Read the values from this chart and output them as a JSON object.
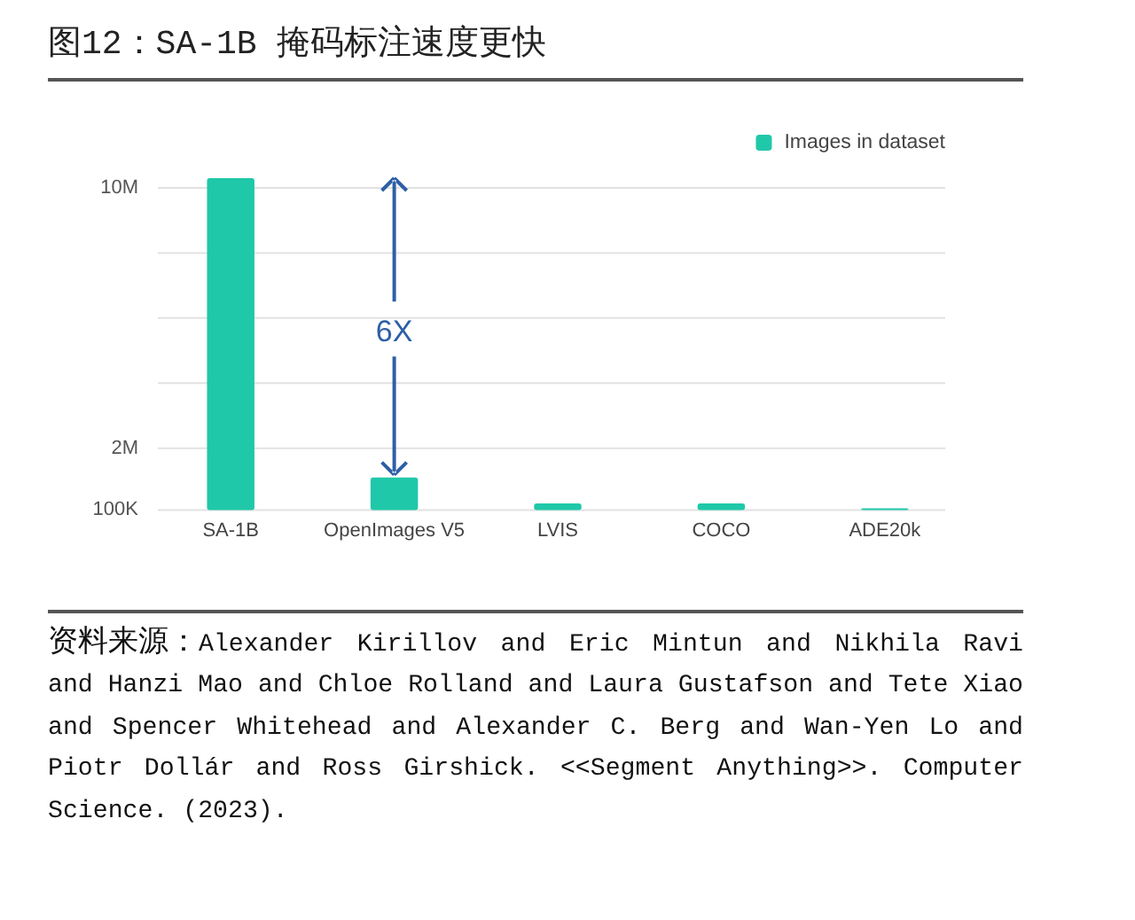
{
  "chart_data": {
    "type": "bar",
    "title": "图12：SA-1B 掩码标注速度更快",
    "categories": [
      "SA-1B",
      "OpenImages V5",
      "LVIS",
      "COCO",
      "ADE20k"
    ],
    "series": [
      {
        "name": "Images in dataset",
        "color": "#1fc8a9",
        "values": [
          10300000,
          1100000,
          300000,
          300000,
          150000
        ]
      }
    ],
    "ylim": [
      100000,
      10300000
    ],
    "yticks": [
      {
        "value": 100000,
        "label": "100K"
      },
      {
        "value": 2000000,
        "label": "2M"
      },
      {
        "value": 4000000,
        "label": null
      },
      {
        "value": 6000000,
        "label": null
      },
      {
        "value": 8000000,
        "label": null
      },
      {
        "value": 10000000,
        "label": "10M"
      }
    ],
    "grid": "y",
    "legend": "top right",
    "annotations": [
      "6X",
      "资料来源：Alexander Kirillov and Eric Mintun and Nikhila Ravi and Hanzi Mao and Chloe Rolland and Laura Gustafson and Tete Xiao and Spencer Whitehead and Alexander C. Berg and Wan-Yen Lo and Piotr Dollár and Ross Girshick. <<Segment Anything>>. Computer Science. (2023)."
    ]
  }
}
